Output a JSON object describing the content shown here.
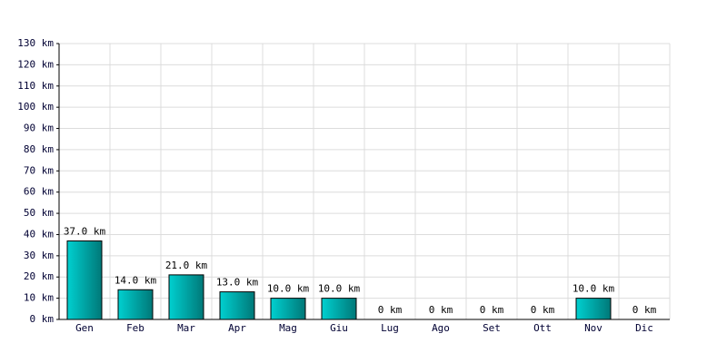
{
  "chart_data": {
    "type": "bar",
    "categories": [
      "Gen",
      "Feb",
      "Mar",
      "Apr",
      "Mag",
      "Giu",
      "Lug",
      "Ago",
      "Set",
      "Ott",
      "Nov",
      "Dic"
    ],
    "values": [
      37,
      14,
      21,
      13,
      10,
      10,
      0,
      0,
      0,
      0,
      10,
      0
    ],
    "value_labels": [
      "37.0 km",
      "14.0 km",
      "21.0 km",
      "13.0 km",
      "10.0 km",
      "10.0 km",
      "0 km",
      "0 km",
      "0 km",
      "0 km",
      "10.0 km",
      "0 km"
    ],
    "color": "#00d0d0",
    "ylim": [
      0,
      130
    ],
    "yticks": [
      {
        "value": 0,
        "label": "0 km"
      },
      {
        "value": 10,
        "label": "10 km"
      },
      {
        "value": 20,
        "label": "20 km"
      },
      {
        "value": 30,
        "label": "30 km"
      },
      {
        "value": 40,
        "label": "40 km"
      },
      {
        "value": 50,
        "label": "50 km"
      },
      {
        "value": 60,
        "label": "60 km"
      },
      {
        "value": 70,
        "label": "70 km"
      },
      {
        "value": 80,
        "label": "80 km"
      },
      {
        "value": 90,
        "label": "90 km"
      },
      {
        "value": 100,
        "label": "100 km"
      },
      {
        "value": 110,
        "label": "110 km"
      },
      {
        "value": 120,
        "label": "120 km"
      },
      {
        "value": 130,
        "label": "130 km"
      }
    ],
    "grid": true
  }
}
